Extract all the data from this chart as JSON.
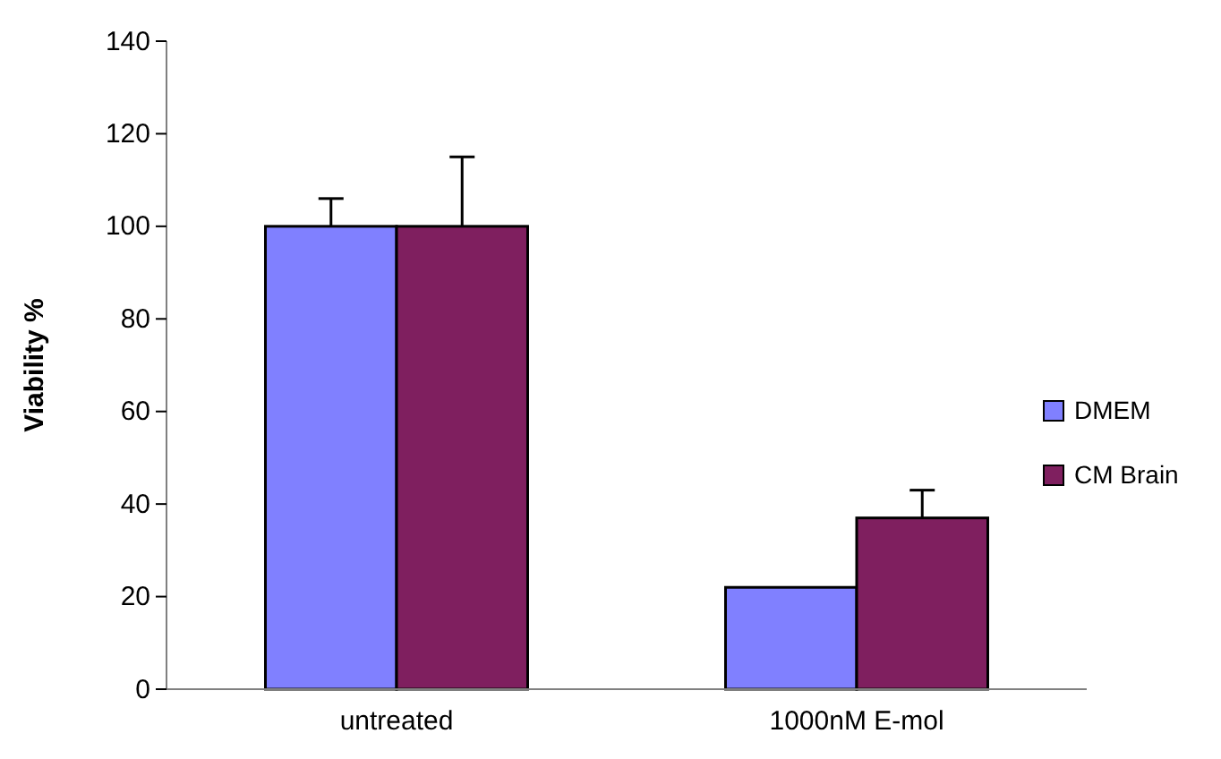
{
  "chart_data": {
    "type": "bar",
    "ylabel": "Viability %",
    "categories": [
      "untreated",
      "1000nM E-mol"
    ],
    "series": [
      {
        "name": "DMEM",
        "color": "#8080ff",
        "values": [
          100,
          22
        ],
        "errors": [
          [
            100,
            106
          ],
          null
        ]
      },
      {
        "name": "CM Brain",
        "color": "#7f1f5f",
        "values": [
          100,
          37
        ],
        "errors": [
          [
            100,
            115
          ],
          [
            37,
            43
          ]
        ]
      }
    ],
    "ylim": [
      0,
      140
    ],
    "yticks": [
      0,
      20,
      40,
      60,
      80,
      100,
      120,
      140
    ],
    "grid": false,
    "legend": "right"
  }
}
